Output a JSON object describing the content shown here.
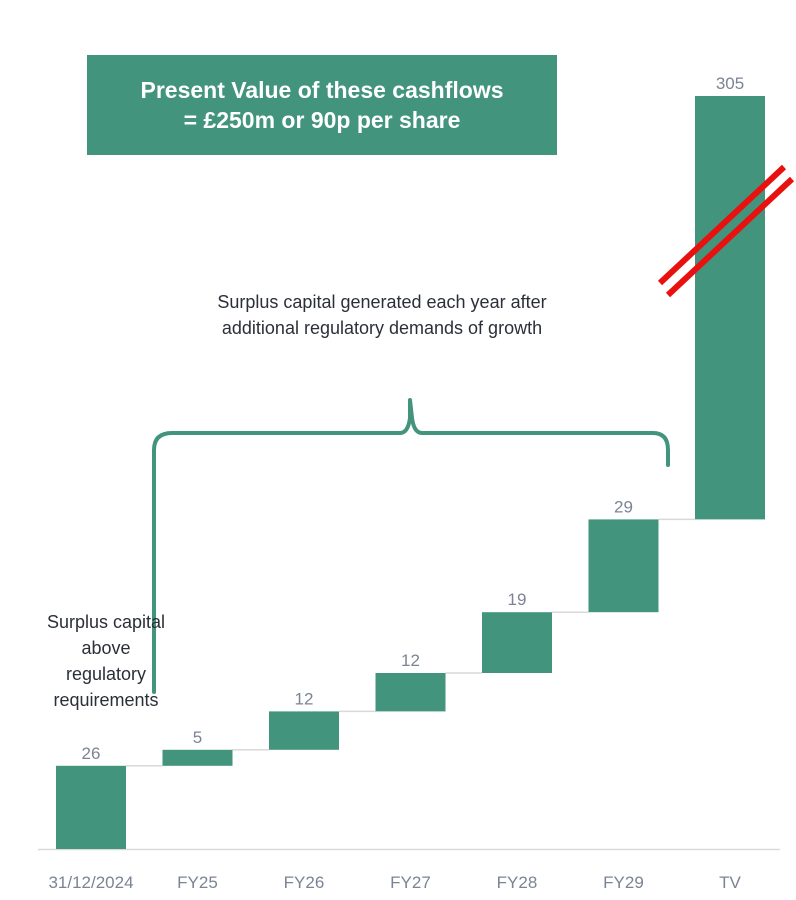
{
  "callout": {
    "line1": "Present Value of these cashflows",
    "line2": "= £250m or 90p per share"
  },
  "annotations": {
    "surplus_generated": "Surplus capital generated each year after additional regulatory demands of growth",
    "surplus_above": "Surplus capital above regulatory requirements"
  },
  "colors": {
    "bar": "#43947c",
    "brace": "#43947c",
    "connector": "#d9d9d9",
    "axis": "#d9d9d9",
    "label": "#7b8494",
    "break_mark": "#e8110f"
  },
  "chart_data": {
    "type": "bar",
    "subtype": "waterfall",
    "categories": [
      "31/12/2024",
      "FY25",
      "FY26",
      "FY27",
      "FY28",
      "FY29",
      "TV"
    ],
    "values": [
      26,
      5,
      12,
      12,
      19,
      29,
      305
    ],
    "starts": [
      0,
      26,
      31,
      43,
      55,
      74,
      103
    ],
    "axis_break_on": "TV",
    "grid": false,
    "legend": "none"
  }
}
